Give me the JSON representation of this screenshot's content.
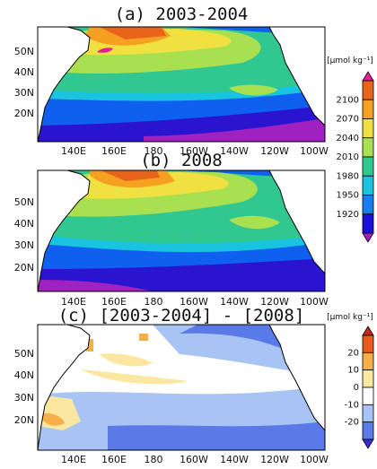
{
  "figure": {
    "lon_labels": [
      "140E",
      "160E",
      "180",
      "160W",
      "140W",
      "120W",
      "100W"
    ],
    "lat_labels": [
      "20N",
      "30N",
      "40N",
      "50N"
    ]
  },
  "panels": [
    {
      "id": "a",
      "title": "(a) 2003-2004",
      "units": "[μmol kg⁻¹]",
      "colorbar_labels": [
        "2100",
        "2070",
        "2040",
        "2010",
        "1980",
        "1950",
        "1920"
      ],
      "colorbar_colors": [
        "#a020c0",
        "#1a10d8",
        "#1a7cf0",
        "#18c4e0",
        "#30c890",
        "#a8e050",
        "#f0e040",
        "#f5a020",
        "#e8641a",
        "#e0209a"
      ]
    },
    {
      "id": "b",
      "title": "(b) 2008",
      "units": "",
      "colorbar_labels": [],
      "colorbar_colors": []
    },
    {
      "id": "c",
      "title": "(c) [2003-2004] - [2008]",
      "units": "[μmol kg⁻¹]",
      "colorbar_labels": [
        "20",
        "10",
        "0",
        "-10",
        "-20"
      ],
      "colorbar_colors": [
        "#3a2ad0",
        "#5a7ae8",
        "#a8c4f4",
        "#ffffff",
        "#fbe7a0",
        "#f5b04a",
        "#e85a1a",
        "#c8281a"
      ]
    }
  ]
}
